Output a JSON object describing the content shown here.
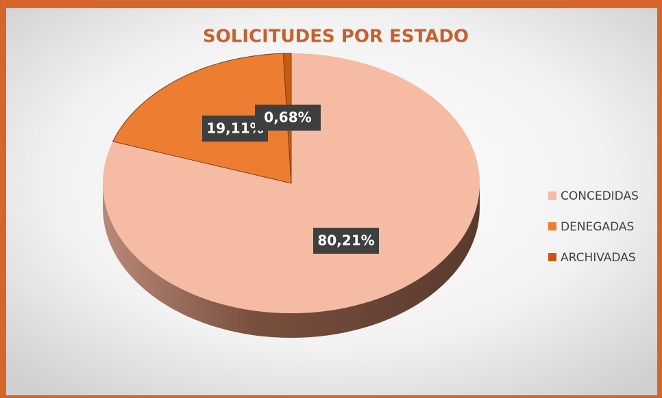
{
  "chart_data": {
    "type": "pie",
    "title": "SOLICITUDES POR ESTADO",
    "categories": [
      "CONCEDIDAS",
      "DENEGADAS",
      "ARCHIVADAS"
    ],
    "values": [
      80.21,
      19.11,
      0.68
    ],
    "value_labels": [
      "80,21%",
      "19,11%",
      "0,68%"
    ],
    "colors": [
      "#f5bba3",
      "#ed7d31",
      "#c55a11"
    ],
    "legend": "right"
  }
}
